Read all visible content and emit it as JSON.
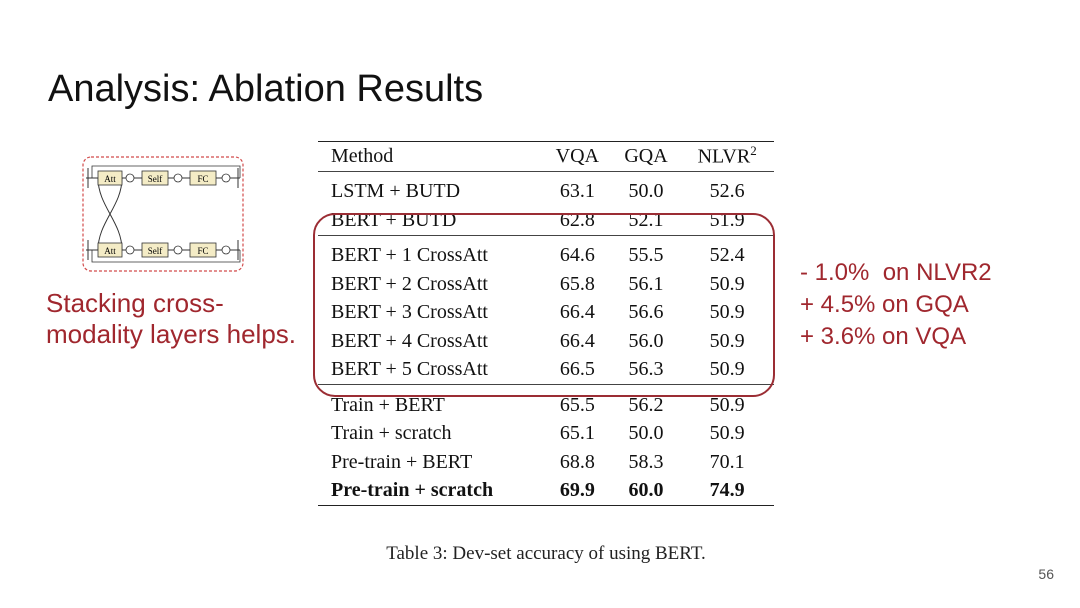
{
  "slide": {
    "title": "Analysis: Ablation Results",
    "page_number": "56"
  },
  "left_note": {
    "lines": [
      "Stacking cross-",
      "modality layers helps."
    ],
    "color": "#a0272e"
  },
  "diagram": {
    "top_row": [
      "Att",
      "Self",
      "FC"
    ],
    "bottom_row": [
      "Att",
      "Self",
      "FC"
    ],
    "node_fill": "#f4ecc6",
    "dash_color": "#d24b4b"
  },
  "table": {
    "headers": {
      "method": "Method",
      "vqa": "VQA",
      "gqa": "GQA",
      "nlvr": "NLVR",
      "nlvr_sup": "2"
    },
    "groups": [
      [
        {
          "method": "LSTM + BUTD",
          "vqa": "63.1",
          "gqa": "50.0",
          "nlvr": "52.6"
        },
        {
          "method": "BERT + BUTD",
          "vqa": "62.8",
          "gqa": "52.1",
          "nlvr": "51.9"
        }
      ],
      [
        {
          "method": "BERT + 1 CrossAtt",
          "vqa": "64.6",
          "gqa": "55.5",
          "nlvr": "52.4"
        },
        {
          "method": "BERT + 2 CrossAtt",
          "vqa": "65.8",
          "gqa": "56.1",
          "nlvr": "50.9"
        },
        {
          "method": "BERT + 3 CrossAtt",
          "vqa": "66.4",
          "gqa": "56.6",
          "nlvr": "50.9"
        },
        {
          "method": "BERT + 4 CrossAtt",
          "vqa": "66.4",
          "gqa": "56.0",
          "nlvr": "50.9"
        },
        {
          "method": "BERT + 5 CrossAtt",
          "vqa": "66.5",
          "gqa": "56.3",
          "nlvr": "50.9"
        }
      ],
      [
        {
          "method": "Train + BERT",
          "vqa": "65.5",
          "gqa": "56.2",
          "nlvr": "50.9"
        },
        {
          "method": "Train + scratch",
          "vqa": "65.1",
          "gqa": "50.0",
          "nlvr": "50.9"
        },
        {
          "method": "Pre-train + BERT",
          "vqa": "68.8",
          "gqa": "58.3",
          "nlvr": "70.1"
        },
        {
          "method": "Pre-train + scratch",
          "vqa": "69.9",
          "gqa": "60.0",
          "nlvr": "74.9",
          "bold": true
        }
      ]
    ],
    "caption": "Table 3: Dev-set accuracy of using BERT."
  },
  "right_note": {
    "lines": [
      "- 1.0%  on NLVR2",
      "+ 4.5% on GQA",
      "+ 3.6% on VQA"
    ],
    "color": "#a0272e"
  },
  "highlight_color": "#9b2d34"
}
